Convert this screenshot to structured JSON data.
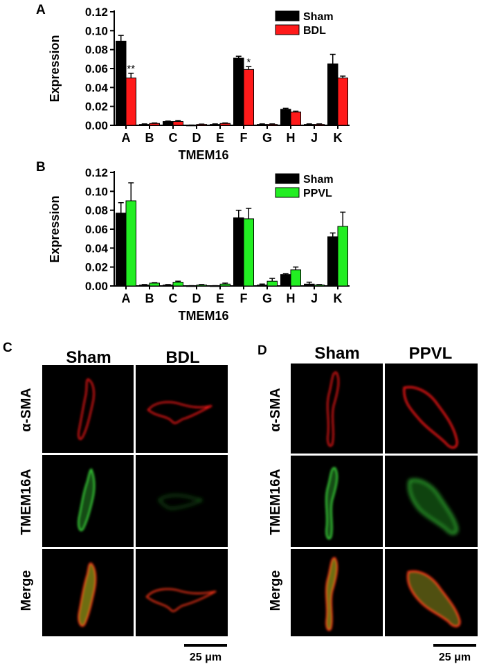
{
  "chart_data": [
    {
      "type": "bar",
      "panel_label": "A",
      "categories": [
        "A",
        "B",
        "C",
        "D",
        "E",
        "F",
        "G",
        "H",
        "J",
        "K"
      ],
      "series": [
        {
          "name": "Sham",
          "values": [
            0.089,
            0.001,
            0.004,
            0.0,
            0.001,
            0.071,
            0.001,
            0.017,
            0.001,
            0.065
          ],
          "errors": [
            0.006,
            0.0005,
            0.0005,
            0.0003,
            0.0005,
            0.002,
            0.0005,
            0.001,
            0.0005,
            0.01
          ]
        },
        {
          "name": "BDL",
          "values": [
            0.05,
            0.002,
            0.004,
            0.001,
            0.002,
            0.059,
            0.001,
            0.014,
            0.001,
            0.05
          ],
          "errors": [
            0.005,
            0.0005,
            0.001,
            0.0003,
            0.0005,
            0.003,
            0.0005,
            0.001,
            0.0005,
            0.002
          ]
        }
      ],
      "annotations": [
        {
          "category": "A",
          "text": "**"
        },
        {
          "category": "F",
          "text": "*"
        }
      ],
      "title": "",
      "xlabel": "TMEM16",
      "ylabel": "Expression",
      "ylim": [
        0,
        0.12
      ],
      "yticks": [
        "0.00",
        "0.02",
        "0.04",
        "0.06",
        "0.08",
        "0.10",
        "0.12"
      ],
      "legend_position": "top-right",
      "colors": {
        "Sham": "#000000",
        "BDL": "#ff1a1a"
      }
    },
    {
      "type": "bar",
      "panel_label": "B",
      "categories": [
        "A",
        "B",
        "C",
        "D",
        "E",
        "F",
        "G",
        "H",
        "J",
        "K"
      ],
      "series": [
        {
          "name": "Sham",
          "values": [
            0.077,
            0.001,
            0.001,
            0.0,
            0.0,
            0.072,
            0.001,
            0.012,
            0.002,
            0.052
          ],
          "errors": [
            0.011,
            0.0005,
            0.0005,
            0.0003,
            0.0003,
            0.008,
            0.001,
            0.001,
            0.002,
            0.004
          ]
        },
        {
          "name": "PPVL",
          "values": [
            0.09,
            0.003,
            0.004,
            0.001,
            0.002,
            0.071,
            0.005,
            0.017,
            0.001,
            0.063
          ],
          "errors": [
            0.019,
            0.0005,
            0.001,
            0.0005,
            0.001,
            0.011,
            0.003,
            0.003,
            0.0005,
            0.015
          ]
        }
      ],
      "title": "",
      "xlabel": "TMEM16",
      "ylabel": "Expression",
      "ylim": [
        0,
        0.12
      ],
      "yticks": [
        "0.00",
        "0.02",
        "0.04",
        "0.06",
        "0.08",
        "0.10",
        "0.12"
      ],
      "legend_position": "top-right",
      "colors": {
        "Sham": "#000000",
        "PPVL": "#22ee22"
      }
    }
  ],
  "micrographs": [
    {
      "panel_label": "C",
      "columns": [
        "Sham",
        "BDL"
      ],
      "rows": [
        "α-SMA",
        "TMEM16A",
        "Merge"
      ],
      "scale_bar": "25 μm"
    },
    {
      "panel_label": "D",
      "columns": [
        "Sham",
        "PPVL"
      ],
      "rows": [
        "α-SMA",
        "TMEM16A",
        "Merge"
      ],
      "scale_bar": "25 μm"
    }
  ]
}
